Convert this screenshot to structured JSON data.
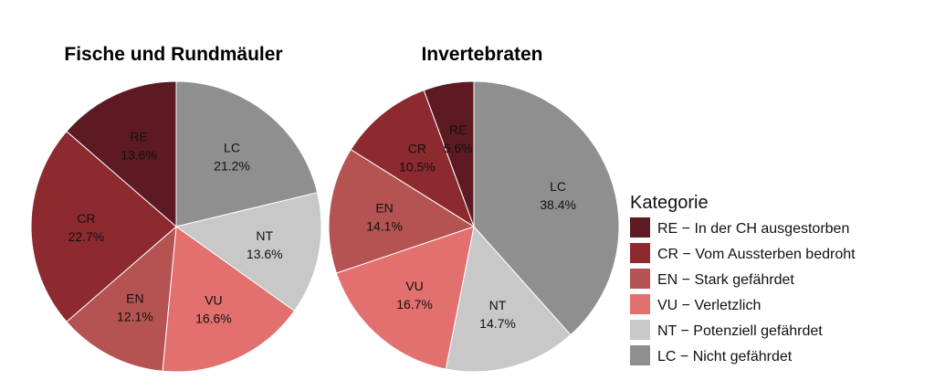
{
  "chart_data": [
    {
      "type": "pie",
      "title": "Fische und Rundmäuler",
      "slices": [
        {
          "code": "LC",
          "label": "21.2%",
          "value": 21.2
        },
        {
          "code": "NT",
          "label": "13.6%",
          "value": 13.6
        },
        {
          "code": "VU",
          "label": "16.6%",
          "value": 16.6
        },
        {
          "code": "EN",
          "label": "12.1%",
          "value": 12.1
        },
        {
          "code": "CR",
          "label": "22.7%",
          "value": 22.7
        },
        {
          "code": "RE",
          "label": "13.6%",
          "value": 13.6
        }
      ]
    },
    {
      "type": "pie",
      "title": "Invertebraten",
      "slices": [
        {
          "code": "LC",
          "label": "38.4%",
          "value": 38.4
        },
        {
          "code": "NT",
          "label": "14.7%",
          "value": 14.7
        },
        {
          "code": "VU",
          "label": "16.7%",
          "value": 16.7
        },
        {
          "code": "EN",
          "label": "14.1%",
          "value": 14.1
        },
        {
          "code": "CR",
          "label": "10.5%",
          "value": 10.5
        },
        {
          "code": "RE",
          "label": "5.6%",
          "value": 5.6
        }
      ]
    }
  ],
  "legend": {
    "title": "Kategorie",
    "placement": "right",
    "items": [
      {
        "code": "RE",
        "text": "RE − In der CH ausgestorben",
        "color": "#5e1a22"
      },
      {
        "code": "CR",
        "text": "CR − Vom Aussterben bedroht",
        "color": "#8c2a2f"
      },
      {
        "code": "EN",
        "text": "EN − Stark gefährdet",
        "color": "#b45352"
      },
      {
        "code": "VU",
        "text": "VU − Verletzlich",
        "color": "#e2706e"
      },
      {
        "code": "NT",
        "text": "NT − Potenziell gefährdet",
        "color": "#c8c8c8"
      },
      {
        "code": "LC",
        "text": "LC − Nicht gefährdet",
        "color": "#8f8f8f"
      }
    ]
  }
}
